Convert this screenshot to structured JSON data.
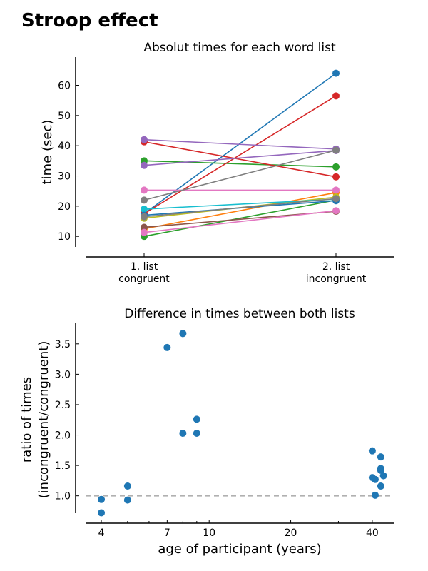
{
  "figure_title": "Stroop effect",
  "chart_data": [
    {
      "type": "line",
      "title": "Absolut times for each word list",
      "xlabel": "",
      "ylabel": "time (sec)",
      "categories": [
        "1. list\ncongruent",
        "2. list\nincongruent"
      ],
      "ylim": [
        6.5,
        66.5
      ],
      "yticks": [
        10,
        20,
        30,
        40,
        50,
        60
      ],
      "grid": false,
      "series": [
        {
          "values": [
            17.5,
            64.0
          ],
          "color": "#1f77b4"
        },
        {
          "values": [
            12.5,
            24.5
          ],
          "color": "#ff7f0e"
        },
        {
          "values": [
            10.0,
            22.0
          ],
          "color": "#2ca02c"
        },
        {
          "values": [
            35.0,
            33.0
          ],
          "color": "#2ca02c"
        },
        {
          "values": [
            17.5,
            56.5
          ],
          "color": "#d62728"
        },
        {
          "values": [
            41.3,
            29.7
          ],
          "color": "#d62728"
        },
        {
          "values": [
            42.0,
            38.9
          ],
          "color": "#9467bd"
        },
        {
          "values": [
            33.5,
            38.4
          ],
          "color": "#9467bd"
        },
        {
          "values": [
            13.0,
            18.3
          ],
          "color": "#8c564b"
        },
        {
          "values": [
            11.3,
            18.5
          ],
          "color": "#e377c2"
        },
        {
          "values": [
            25.3,
            25.3
          ],
          "color": "#e377c2"
        },
        {
          "values": [
            22.0,
            38.5
          ],
          "color": "#7f7f7f"
        },
        {
          "values": [
            16.0,
            23.0
          ],
          "color": "#bcbd22"
        },
        {
          "values": [
            19.0,
            22.3
          ],
          "color": "#17becf"
        },
        {
          "values": [
            17.0,
            21.8
          ],
          "color": "#1f77b4"
        },
        {
          "values": [
            16.5,
            22.5
          ],
          "color": "#7f7f7f"
        }
      ]
    },
    {
      "type": "scatter",
      "title": "Difference in times between both lists",
      "xlabel": "age of participant (years)",
      "ylabel": "ratio of times\n(incongruent/congruent)",
      "x_scale": "log",
      "xlim": [
        3.5,
        48
      ],
      "xticks": [
        4,
        7,
        10,
        20,
        40
      ],
      "ylim": [
        0.55,
        3.85
      ],
      "yticks": [
        1.0,
        1.5,
        2.0,
        2.5,
        3.0,
        3.5
      ],
      "reference_line": {
        "y": 1.0,
        "style": "dashed",
        "color": "#b0b0b0"
      },
      "grid": false,
      "color": "#1f77b4",
      "points": [
        {
          "x": 4,
          "y": 0.94
        },
        {
          "x": 4,
          "y": 0.72
        },
        {
          "x": 5,
          "y": 1.16
        },
        {
          "x": 5,
          "y": 0.93
        },
        {
          "x": 7,
          "y": 3.44
        },
        {
          "x": 8,
          "y": 3.67
        },
        {
          "x": 8,
          "y": 2.03
        },
        {
          "x": 9,
          "y": 2.26
        },
        {
          "x": 9,
          "y": 2.03
        },
        {
          "x": 40,
          "y": 1.74
        },
        {
          "x": 40,
          "y": 1.3
        },
        {
          "x": 41,
          "y": 1.27
        },
        {
          "x": 41,
          "y": 1.01
        },
        {
          "x": 43,
          "y": 1.64
        },
        {
          "x": 43,
          "y": 1.45
        },
        {
          "x": 43,
          "y": 1.42
        },
        {
          "x": 43,
          "y": 1.16
        },
        {
          "x": 44,
          "y": 1.33
        }
      ]
    }
  ]
}
